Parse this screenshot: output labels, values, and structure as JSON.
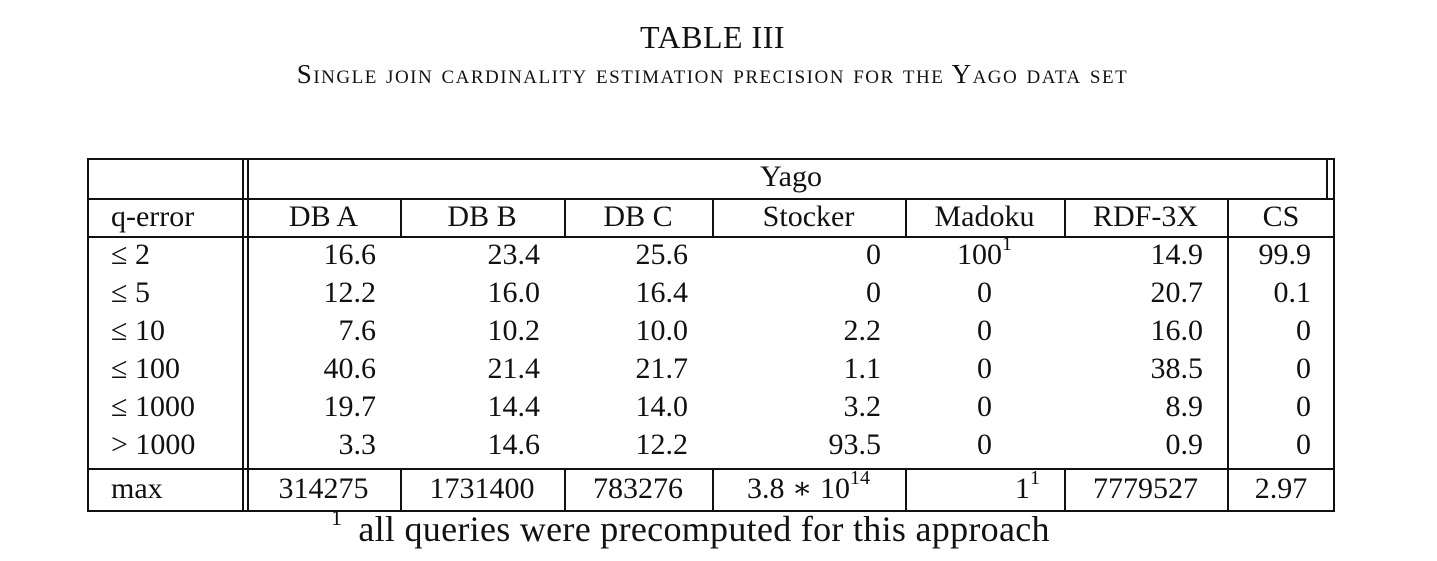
{
  "caption": {
    "label": "TABLE III",
    "title": "Single join cardinality estimation precision for the Yago data set"
  },
  "table": {
    "group_header": "Yago",
    "columns": [
      "q-error",
      "DB A",
      "DB B",
      "DB C",
      "Stocker",
      "Madoku",
      "RDF-3X",
      "CS"
    ],
    "rows": [
      {
        "label": "≤ 2",
        "cells": [
          "16.6",
          "23.4",
          "25.6",
          "0",
          "100",
          "14.9",
          "99.9"
        ],
        "sup": [
          "",
          "",
          "",
          "",
          "1",
          "",
          ""
        ]
      },
      {
        "label": "≤ 5",
        "cells": [
          "12.2",
          "16.0",
          "16.4",
          "0",
          "0",
          "20.7",
          "0.1"
        ],
        "sup": [
          "",
          "",
          "",
          "",
          "",
          "",
          ""
        ]
      },
      {
        "label": "≤ 10",
        "cells": [
          "7.6",
          "10.2",
          "10.0",
          "2.2",
          "0",
          "16.0",
          "0"
        ],
        "sup": [
          "",
          "",
          "",
          "",
          "",
          "",
          ""
        ]
      },
      {
        "label": "≤ 100",
        "cells": [
          "40.6",
          "21.4",
          "21.7",
          "1.1",
          "0",
          "38.5",
          "0"
        ],
        "sup": [
          "",
          "",
          "",
          "",
          "",
          "",
          ""
        ]
      },
      {
        "label": "≤ 1000",
        "cells": [
          "19.7",
          "14.4",
          "14.0",
          "3.2",
          "0",
          "8.9",
          "0"
        ],
        "sup": [
          "",
          "",
          "",
          "",
          "",
          "",
          ""
        ]
      },
      {
        "label": "> 1000",
        "cells": [
          "3.3",
          "14.6",
          "12.2",
          "93.5",
          "0",
          "0.9",
          "0"
        ],
        "sup": [
          "",
          "",
          "",
          "",
          "",
          "",
          ""
        ]
      },
      {
        "label": "max",
        "cells": [
          "314275",
          "1731400",
          "783276",
          "3.8 ∗ 10",
          "1",
          "7779527",
          "2.97"
        ],
        "sup": [
          "",
          "",
          "",
          "14",
          "1",
          "",
          ""
        ]
      }
    ]
  },
  "footnote": {
    "marker": "1",
    "text": "all queries were precomputed for this approach"
  }
}
